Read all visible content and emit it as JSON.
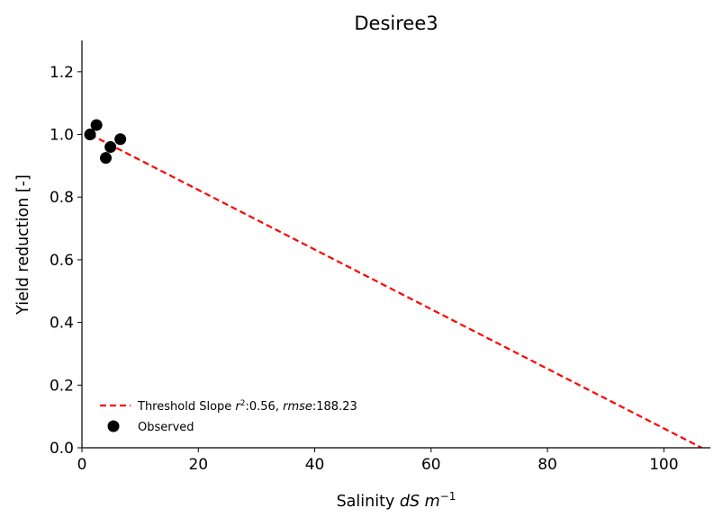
{
  "chart_data": {
    "type": "scatter",
    "title": "Desiree3",
    "xlabel_prefix": "Salinity ",
    "xlabel_math": "dS m",
    "xlabel_sup": "−1",
    "ylabel": "Yield reduction [-]",
    "xlim": [
      0,
      108
    ],
    "ylim": [
      0,
      1.3
    ],
    "xticks": [
      0,
      20,
      40,
      60,
      80,
      100
    ],
    "yticks": [
      0.0,
      0.2,
      0.4,
      0.6,
      0.8,
      1.0,
      1.2
    ],
    "xtick_labels": [
      "0",
      "20",
      "40",
      "60",
      "80",
      "100"
    ],
    "ytick_labels": [
      "0.0",
      "0.2",
      "0.4",
      "0.6",
      "0.8",
      "1.0",
      "1.2"
    ],
    "series": [
      {
        "name": "Observed",
        "kind": "scatter",
        "color": "#000000",
        "points": [
          {
            "x": 1.4,
            "y": 1.0
          },
          {
            "x": 2.5,
            "y": 1.03
          },
          {
            "x": 4.1,
            "y": 0.925
          },
          {
            "x": 4.9,
            "y": 0.96
          },
          {
            "x": 6.6,
            "y": 0.985
          }
        ]
      },
      {
        "name": "Threshold Slope",
        "kind": "line",
        "style": "dashed",
        "color": "#ff0000",
        "points": [
          {
            "x": 1.4,
            "y": 1.0
          },
          {
            "x": 106.5,
            "y": 0.0
          }
        ]
      }
    ],
    "legend": {
      "placement": "lower-left",
      "entries": [
        {
          "series": "Threshold Slope",
          "label_prefix": "Threshold Slope ",
          "r2_label": "r",
          "r2_sup": "2",
          "r2_value": ":0.56, ",
          "rmse_label": "rmse",
          "rmse_value": ":188.23"
        },
        {
          "series": "Observed",
          "label": "Observed"
        }
      ]
    },
    "grid": false
  }
}
